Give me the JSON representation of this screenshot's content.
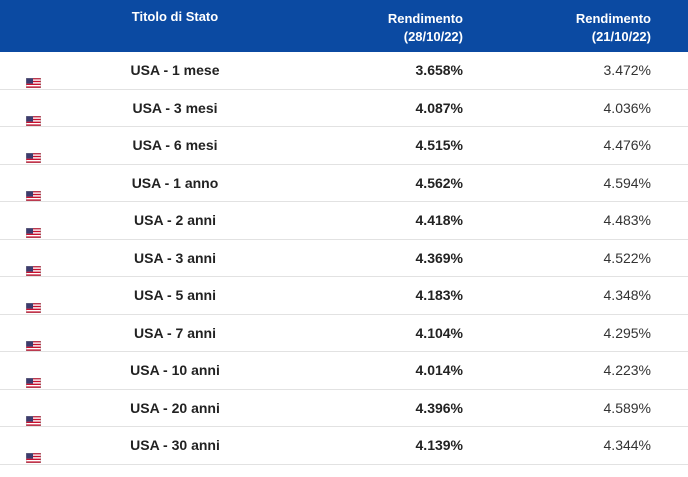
{
  "table": {
    "header": [
      [
        "Titolo di Stato"
      ],
      [
        "Rendimento",
        "(28/10/22)"
      ],
      [
        "Rendimento",
        "(21/10/22)"
      ]
    ],
    "rows": [
      [
        "USA - 1 mese",
        "3.658%",
        "3.472%"
      ],
      [
        "USA - 3 mesi",
        "4.087%",
        "4.036%"
      ],
      [
        "USA - 6 mesi",
        "4.515%",
        "4.476%"
      ],
      [
        "USA - 1 anno",
        "4.562%",
        "4.594%"
      ],
      [
        "USA - 2 anni",
        "4.418%",
        "4.483%"
      ],
      [
        "USA - 3 anni",
        "4.369%",
        "4.522%"
      ],
      [
        "USA - 5 anni",
        "4.183%",
        "4.348%"
      ],
      [
        "USA - 7 anni",
        "4.104%",
        "4.295%"
      ],
      [
        "USA - 10 anni",
        "4.014%",
        "4.223%"
      ],
      [
        "USA - 20 anni",
        "4.396%",
        "4.589%"
      ],
      [
        "USA - 30 anni",
        "4.139%",
        "4.344%"
      ]
    ]
  }
}
